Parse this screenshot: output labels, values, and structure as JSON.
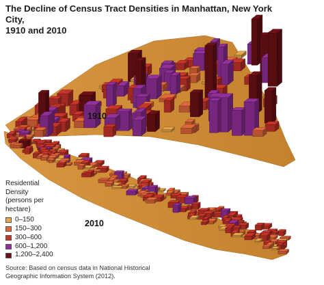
{
  "title": {
    "line1": "The Decline of Census Tract Densities in Manhattan, New York City,",
    "line2": "1910 and 2010"
  },
  "maps": [
    {
      "year": "1910"
    },
    {
      "year": "2010"
    }
  ],
  "legend": {
    "title_lines": [
      "Residential",
      "Density",
      "(persons per",
      "hectare)"
    ],
    "items": [
      {
        "label": "0–150",
        "color": "#E8A84A"
      },
      {
        "label": "150–300",
        "color": "#E2683A"
      },
      {
        "label": "300–600",
        "color": "#C8342A"
      },
      {
        "label": "600–1,200",
        "color": "#94309B"
      },
      {
        "label": "1,200–2,400",
        "color": "#6E1015"
      }
    ]
  },
  "source": {
    "line1": "Source: Based on census data in National Historical",
    "line2": "Geographic Information System (2012)."
  }
}
